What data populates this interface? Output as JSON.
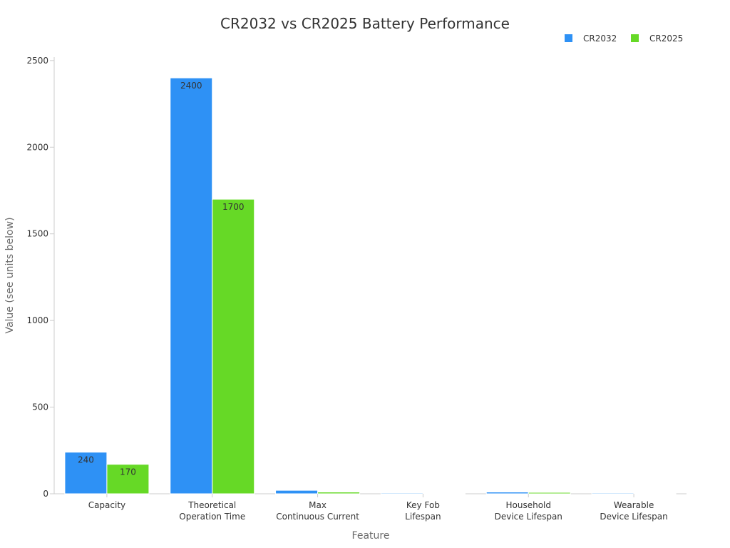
{
  "chart_data": {
    "type": "bar",
    "title": "CR2032 vs CR2025 Battery Performance",
    "xlabel": "Feature",
    "ylabel": "Value (see units below)",
    "categories": [
      [
        "Capacity"
      ],
      [
        "Theoretical",
        "Operation Time"
      ],
      [
        "Max",
        "Continuous Current"
      ],
      [
        "Key Fob",
        "Lifespan"
      ],
      [
        "Household",
        "Device Lifespan"
      ],
      [
        "Wearable",
        "Device Lifespan"
      ]
    ],
    "series": [
      {
        "name": "CR2032",
        "color": "#2e91f5",
        "values": [
          240,
          2400,
          20,
          5,
          10,
          5
        ],
        "labels": [
          "240",
          "2400",
          "",
          "",
          "",
          ""
        ]
      },
      {
        "name": "CR2025",
        "color": "#66d926",
        "values": [
          170,
          1700,
          10,
          3,
          8,
          4
        ],
        "labels": [
          "170",
          "1700",
          "",
          "",
          "",
          ""
        ]
      }
    ],
    "ylim": [
      0,
      2520
    ],
    "yticks": [
      0,
      500,
      1000,
      1500,
      2000,
      2500
    ],
    "legend_position": "top-right",
    "grid": false
  }
}
